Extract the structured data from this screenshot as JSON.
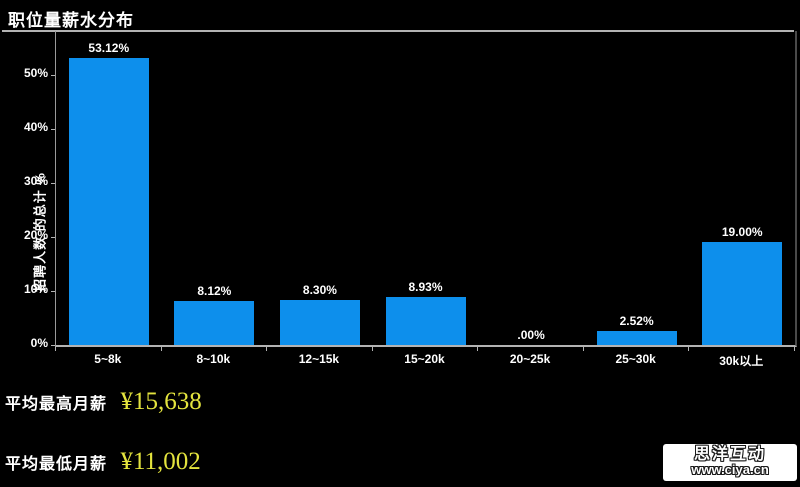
{
  "title": "职位量薪水分布",
  "chart_data": {
    "type": "bar",
    "title": "职位量薪水分布",
    "categories": [
      "5~8k",
      "8~10k",
      "12~15k",
      "15~20k",
      "20~25k",
      "25~30k",
      "30k以上"
    ],
    "values": [
      53.12,
      8.12,
      8.3,
      8.93,
      0.0,
      2.52,
      19.0
    ],
    "value_labels": [
      "53.12%",
      "8.12%",
      "8.30%",
      "8.93%",
      ".00%",
      "2.52%",
      "19.00%"
    ],
    "xlabel": "",
    "ylabel": "招聘人数 的总计 %",
    "ylim": [
      0,
      58
    ],
    "ytick_values": [
      0,
      10,
      20,
      30,
      40,
      50
    ],
    "ytick_labels": [
      "0%",
      "10%",
      "20%",
      "30%",
      "40%",
      "50%"
    ],
    "legend_position": "none",
    "grid": false,
    "bar_color": "#0d8fec",
    "axis_color": "#b3b3b3",
    "label_color": "#ffffff",
    "background_color": "#000000"
  },
  "summary": {
    "max_label": "平均最高月薪",
    "max_value": "¥15,638",
    "min_label": "平均最低月薪",
    "min_value": "¥11,002",
    "value_color": "#e4e43e"
  },
  "watermark": {
    "name": "思洋互动",
    "url": "www.ciya.cn"
  }
}
